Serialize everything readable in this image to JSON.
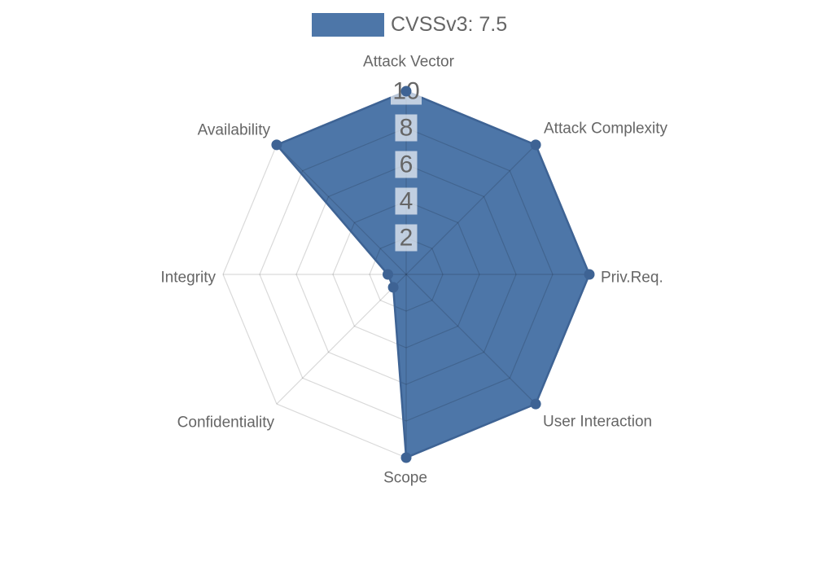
{
  "legend": {
    "label": "CVSSv3: 7.5",
    "swatch_color": "#4d76a8"
  },
  "chart_data": {
    "type": "radar",
    "title": "",
    "categories": [
      "Attack Vector",
      "Attack Complexity",
      "Priv.Req.",
      "User Interaction",
      "Scope",
      "Confidentiality",
      "Integrity",
      "Availability"
    ],
    "series": [
      {
        "name": "CVSSv3: 7.5",
        "values": [
          10,
          10,
          10,
          10,
          10,
          1,
          1,
          10
        ]
      }
    ],
    "ticks": [
      2,
      4,
      6,
      8,
      10
    ],
    "rmin": 0,
    "rmax": 10,
    "grid": true,
    "legend_position": "top",
    "colors": {
      "fill": "#4d76a8",
      "border": "#3e6394",
      "marker": "#3e6394",
      "grid": "rgba(0,0,0,0.15)",
      "tick_text": "#666666",
      "tick_backdrop": "rgba(255,255,255,0.65)",
      "label_text": "#666666"
    }
  }
}
